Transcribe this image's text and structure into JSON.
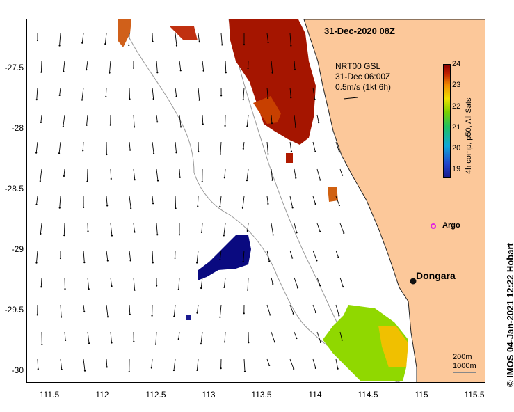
{
  "title": "31-Dec-2020 08Z",
  "product": {
    "line1": "NRT00 GSL",
    "line2": "31-Dec 06:00Z",
    "line3": "0.5m/s (1kt 6h)"
  },
  "colorbar": {
    "label": "4h comp, p50, All Sats",
    "ticks": [
      "24",
      "23",
      "22",
      "21",
      "20",
      "19"
    ],
    "min": 18.7,
    "max": 24,
    "colors": {
      "low": "#1a1a8c",
      "mid": "#7ad000",
      "high": "#8b0000"
    }
  },
  "axes": {
    "y_ticks": [
      "-27.5",
      "-28",
      "-28.5",
      "-29",
      "-29.5",
      "-30"
    ],
    "x_ticks": [
      "111.5",
      "112",
      "112.5",
      "113",
      "113.5",
      "114",
      "114.5",
      "115",
      "115.5"
    ],
    "lon_range": [
      111.3,
      115.65
    ],
    "lat_range": [
      -27.03,
      -30.1
    ]
  },
  "places": {
    "dongara": "Dongara",
    "argo": "Argo"
  },
  "isobaths": [
    "200m",
    "1000m"
  ],
  "credit": "© IMOS 04-Jan-2021 12:22 Hobart",
  "colors": {
    "land": "#fcc89a",
    "argo": "#e020e0",
    "isobath": "#999999"
  }
}
